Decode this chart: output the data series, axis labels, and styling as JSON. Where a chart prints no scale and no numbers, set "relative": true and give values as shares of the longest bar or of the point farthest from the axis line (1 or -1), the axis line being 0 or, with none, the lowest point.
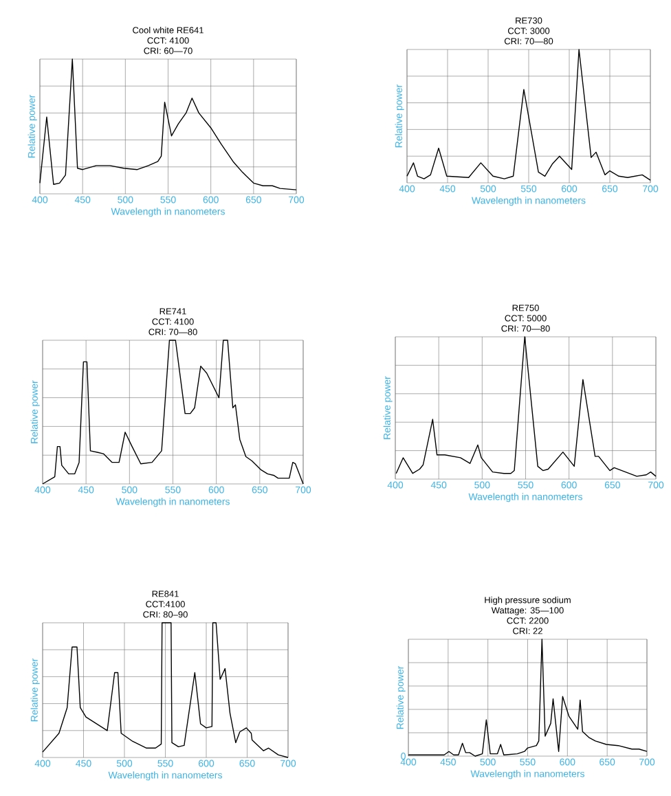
{
  "chart_data": [
    {
      "type": "line",
      "title": "Cool white RE641",
      "subtitle": "CCT: 4100",
      "annotations": [
        "CRI: 60—70"
      ],
      "xlabel": "Wavelength in nanometers",
      "ylabel": "Relative power",
      "relative": true,
      "color": "#000000",
      "line_style": "solid",
      "grid": true,
      "xlim": [
        400,
        700
      ],
      "xticks": [
        400,
        450,
        500,
        550,
        600,
        650,
        700
      ],
      "x": [
        400,
        408,
        416,
        423,
        430,
        438,
        444,
        450,
        466,
        482,
        498,
        514,
        527,
        538,
        542,
        546,
        554,
        562,
        571,
        578,
        586,
        600,
        612,
        626,
        637,
        650,
        661,
        672,
        681,
        700
      ],
      "values": [
        0.08,
        0.57,
        0.07,
        0.08,
        0.14,
        1.0,
        0.19,
        0.18,
        0.21,
        0.21,
        0.19,
        0.18,
        0.21,
        0.24,
        0.28,
        0.68,
        0.43,
        0.52,
        0.6,
        0.71,
        0.6,
        0.49,
        0.37,
        0.24,
        0.16,
        0.08,
        0.06,
        0.06,
        0.04,
        0.03
      ]
    },
    {
      "type": "line",
      "title": "RE730",
      "subtitle": "CCT: 3000",
      "annotations": [
        "CRI: 70—80"
      ],
      "xlabel": "Wavelength in nanometers",
      "ylabel": "Relative power",
      "relative": true,
      "color": "#000000",
      "line_style": "solid",
      "grid": true,
      "xlim": [
        400,
        700
      ],
      "xticks": [
        400,
        450,
        500,
        550,
        600,
        650,
        700
      ],
      "x": [
        400,
        408,
        413,
        421,
        429,
        439,
        449,
        476,
        491,
        506,
        520,
        531,
        544,
        562,
        570,
        579,
        588,
        603,
        612,
        627,
        633,
        644,
        650,
        661,
        672,
        690,
        700
      ],
      "values": [
        0.05,
        0.15,
        0.05,
        0.03,
        0.06,
        0.26,
        0.05,
        0.04,
        0.15,
        0.05,
        0.03,
        0.05,
        0.7,
        0.08,
        0.05,
        0.14,
        0.2,
        0.1,
        1.0,
        0.19,
        0.23,
        0.06,
        0.09,
        0.05,
        0.04,
        0.06,
        0.02
      ]
    },
    {
      "type": "line",
      "title": "RE741",
      "subtitle": "CCT: 4100",
      "annotations": [
        "CRI: 70—80"
      ],
      "xlabel": "Wavelength in nanometers",
      "ylabel": "Relative power",
      "relative": true,
      "color": "#000000",
      "line_style": "solid",
      "grid": true,
      "xlim": [
        400,
        700
      ],
      "xticks": [
        400,
        450,
        500,
        550,
        600,
        650,
        700
      ],
      "x": [
        400,
        414,
        417,
        420,
        422,
        430,
        437,
        442,
        447,
        451,
        455,
        463,
        470,
        480,
        488,
        495,
        503,
        513,
        526,
        537,
        546,
        553,
        564,
        570,
        575,
        582,
        589,
        603,
        608,
        613,
        619,
        622,
        627,
        634,
        641,
        651,
        659,
        666,
        671,
        684,
        688,
        691,
        700
      ],
      "values": [
        0.0,
        0.05,
        0.26,
        0.26,
        0.13,
        0.07,
        0.07,
        0.15,
        0.85,
        0.85,
        0.23,
        0.22,
        0.21,
        0.15,
        0.15,
        0.36,
        0.26,
        0.14,
        0.15,
        0.23,
        1.0,
        1.0,
        0.49,
        0.49,
        0.53,
        0.82,
        0.77,
        0.6,
        1.0,
        1.0,
        0.53,
        0.55,
        0.31,
        0.19,
        0.16,
        0.1,
        0.07,
        0.06,
        0.04,
        0.04,
        0.15,
        0.14,
        0.0
      ]
    },
    {
      "type": "line",
      "title": "RE750",
      "subtitle": "CCT: 5000",
      "annotations": [
        "CRI: 70—80"
      ],
      "xlabel": "Wavelength in nanometers",
      "ylabel": "Relative power",
      "relative": true,
      "color": "#000000",
      "line_style": "solid",
      "grid": true,
      "xlim": [
        400,
        700
      ],
      "xticks": [
        400,
        450,
        500,
        550,
        600,
        650,
        700
      ],
      "x": [
        401,
        409,
        420,
        428,
        432,
        443,
        448,
        457,
        475,
        486,
        495,
        499,
        512,
        525,
        533,
        537,
        549,
        564,
        570,
        576,
        593,
        606,
        616,
        630,
        634,
        647,
        652,
        665,
        678,
        689,
        694,
        700
      ],
      "values": [
        0.04,
        0.15,
        0.04,
        0.07,
        0.1,
        0.42,
        0.17,
        0.17,
        0.15,
        0.11,
        0.24,
        0.15,
        0.05,
        0.04,
        0.04,
        0.06,
        1.0,
        0.09,
        0.06,
        0.07,
        0.19,
        0.09,
        0.7,
        0.16,
        0.16,
        0.06,
        0.08,
        0.05,
        0.02,
        0.03,
        0.05,
        0.02
      ]
    },
    {
      "type": "line",
      "title": "RE841",
      "subtitle": "CCT:4100",
      "annotations": [
        "CRI: 80–90"
      ],
      "xlabel": "Wavelength in nanometers",
      "ylabel": "Relative power",
      "relative": true,
      "color": "#000000",
      "line_style": "solid",
      "grid": true,
      "xlim": [
        400,
        700
      ],
      "xticks": [
        400,
        450,
        500,
        550,
        600,
        650,
        700
      ],
      "x": [
        400,
        420,
        430,
        436,
        442,
        446,
        453,
        479,
        488,
        492,
        496,
        510,
        527,
        538,
        545,
        546,
        557,
        558,
        566,
        573,
        586,
        593,
        600,
        607,
        608,
        612,
        617,
        623,
        629,
        636,
        641,
        649,
        655,
        656,
        670,
        676,
        688,
        700
      ],
      "values": [
        0.04,
        0.18,
        0.37,
        0.82,
        0.82,
        0.37,
        0.3,
        0.2,
        0.63,
        0.63,
        0.18,
        0.12,
        0.07,
        0.07,
        0.1,
        1.0,
        1.0,
        0.11,
        0.08,
        0.09,
        0.63,
        0.25,
        0.22,
        0.23,
        1.0,
        1.0,
        0.58,
        0.66,
        0.33,
        0.11,
        0.19,
        0.22,
        0.18,
        0.13,
        0.05,
        0.07,
        0.02,
        0.0
      ]
    },
    {
      "type": "line",
      "title": "High pressure sodium",
      "subtitle": "Wattage: 35—100",
      "annotations": [
        "CCT: 2200",
        "CRI: 22",
        "0"
      ],
      "xlabel": "Wavelength in nanometers",
      "ylabel": "Relative power",
      "relative": true,
      "color": "#000000",
      "line_style": "solid",
      "grid": true,
      "xlim": [
        400,
        700
      ],
      "xticks": [
        400,
        450,
        500,
        550,
        600,
        650,
        700
      ],
      "x": [
        400,
        445,
        451,
        457,
        463,
        468,
        472,
        477,
        484,
        493,
        498,
        503,
        512,
        516,
        520,
        537,
        546,
        550,
        561,
        564,
        568,
        572,
        579,
        582,
        589,
        594,
        602,
        613,
        616,
        619,
        627,
        635,
        649,
        664,
        681,
        690,
        700
      ],
      "values": [
        0.01,
        0.01,
        0.04,
        0.01,
        0.01,
        0.11,
        0.03,
        0.03,
        0.0,
        0.02,
        0.31,
        0.02,
        0.02,
        0.1,
        0.01,
        0.02,
        0.04,
        0.07,
        0.09,
        0.13,
        1.0,
        0.17,
        0.28,
        0.49,
        0.04,
        0.51,
        0.34,
        0.23,
        0.48,
        0.21,
        0.16,
        0.13,
        0.1,
        0.09,
        0.06,
        0.06,
        0.04
      ]
    }
  ]
}
